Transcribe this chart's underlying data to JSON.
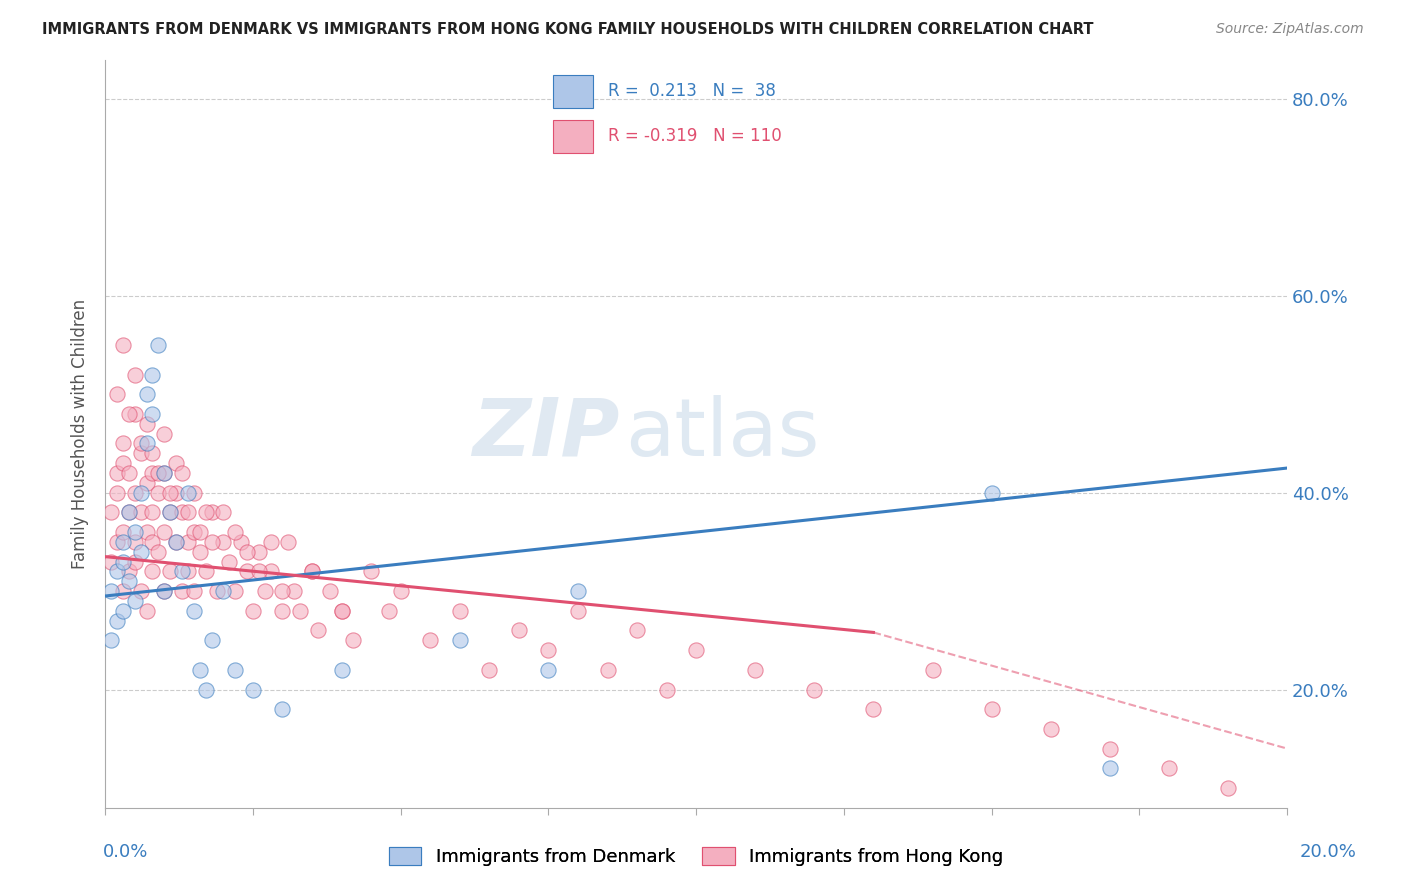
{
  "title": "IMMIGRANTS FROM DENMARK VS IMMIGRANTS FROM HONG KONG FAMILY HOUSEHOLDS WITH CHILDREN CORRELATION CHART",
  "source": "Source: ZipAtlas.com",
  "ylabel": "Family Households with Children",
  "ylabel_tick_vals": [
    0.2,
    0.4,
    0.6,
    0.8
  ],
  "xmin": 0.0,
  "xmax": 0.2,
  "ymin": 0.08,
  "ymax": 0.84,
  "legend_blue_r": "0.213",
  "legend_blue_n": "38",
  "legend_pink_r": "-0.319",
  "legend_pink_n": "110",
  "blue_color": "#aec6e8",
  "pink_color": "#f4afc0",
  "blue_line_color": "#3a7dbf",
  "pink_line_color": "#e05070",
  "watermark_zip": "ZIP",
  "watermark_atlas": "atlas",
  "bg_color": "#ffffff",
  "grid_color": "#cccccc",
  "blue_line_y0": 0.295,
  "blue_line_y1": 0.425,
  "pink_line_y0": 0.335,
  "pink_line_y1_solid": 0.258,
  "pink_solid_xend": 0.13,
  "pink_line_y1_dash": 0.14,
  "blue_scatter_x": [
    0.001,
    0.001,
    0.002,
    0.002,
    0.003,
    0.003,
    0.003,
    0.004,
    0.004,
    0.005,
    0.005,
    0.006,
    0.006,
    0.007,
    0.007,
    0.008,
    0.008,
    0.009,
    0.01,
    0.01,
    0.011,
    0.012,
    0.013,
    0.014,
    0.015,
    0.016,
    0.017,
    0.018,
    0.02,
    0.022,
    0.025,
    0.03,
    0.04,
    0.06,
    0.075,
    0.15,
    0.17,
    0.08
  ],
  "blue_scatter_y": [
    0.3,
    0.25,
    0.32,
    0.27,
    0.35,
    0.28,
    0.33,
    0.31,
    0.38,
    0.29,
    0.36,
    0.4,
    0.34,
    0.45,
    0.5,
    0.48,
    0.52,
    0.55,
    0.42,
    0.3,
    0.38,
    0.35,
    0.32,
    0.4,
    0.28,
    0.22,
    0.2,
    0.25,
    0.3,
    0.22,
    0.2,
    0.18,
    0.22,
    0.25,
    0.22,
    0.4,
    0.12,
    0.3
  ],
  "pink_scatter_x": [
    0.001,
    0.001,
    0.002,
    0.002,
    0.002,
    0.003,
    0.003,
    0.003,
    0.003,
    0.004,
    0.004,
    0.004,
    0.005,
    0.005,
    0.005,
    0.005,
    0.006,
    0.006,
    0.006,
    0.007,
    0.007,
    0.007,
    0.008,
    0.008,
    0.008,
    0.008,
    0.009,
    0.009,
    0.01,
    0.01,
    0.01,
    0.011,
    0.011,
    0.012,
    0.012,
    0.013,
    0.013,
    0.014,
    0.014,
    0.015,
    0.015,
    0.016,
    0.017,
    0.018,
    0.019,
    0.02,
    0.021,
    0.022,
    0.023,
    0.024,
    0.025,
    0.026,
    0.027,
    0.028,
    0.03,
    0.031,
    0.032,
    0.033,
    0.035,
    0.036,
    0.038,
    0.04,
    0.042,
    0.045,
    0.048,
    0.05,
    0.055,
    0.06,
    0.065,
    0.07,
    0.075,
    0.08,
    0.085,
    0.09,
    0.095,
    0.1,
    0.11,
    0.12,
    0.13,
    0.14,
    0.15,
    0.16,
    0.17,
    0.18,
    0.19,
    0.002,
    0.003,
    0.004,
    0.005,
    0.006,
    0.007,
    0.008,
    0.009,
    0.01,
    0.011,
    0.012,
    0.013,
    0.014,
    0.015,
    0.016,
    0.017,
    0.018,
    0.02,
    0.022,
    0.024,
    0.026,
    0.028,
    0.03,
    0.035,
    0.04
  ],
  "pink_scatter_y": [
    0.33,
    0.38,
    0.4,
    0.35,
    0.42,
    0.45,
    0.36,
    0.3,
    0.43,
    0.38,
    0.32,
    0.42,
    0.4,
    0.35,
    0.33,
    0.48,
    0.38,
    0.44,
    0.3,
    0.36,
    0.41,
    0.28,
    0.42,
    0.35,
    0.38,
    0.32,
    0.4,
    0.34,
    0.36,
    0.42,
    0.3,
    0.38,
    0.32,
    0.4,
    0.35,
    0.38,
    0.3,
    0.35,
    0.32,
    0.36,
    0.3,
    0.34,
    0.32,
    0.38,
    0.3,
    0.35,
    0.33,
    0.3,
    0.35,
    0.32,
    0.28,
    0.34,
    0.3,
    0.32,
    0.28,
    0.35,
    0.3,
    0.28,
    0.32,
    0.26,
    0.3,
    0.28,
    0.25,
    0.32,
    0.28,
    0.3,
    0.25,
    0.28,
    0.22,
    0.26,
    0.24,
    0.28,
    0.22,
    0.26,
    0.2,
    0.24,
    0.22,
    0.2,
    0.18,
    0.22,
    0.18,
    0.16,
    0.14,
    0.12,
    0.1,
    0.5,
    0.55,
    0.48,
    0.52,
    0.45,
    0.47,
    0.44,
    0.42,
    0.46,
    0.4,
    0.43,
    0.42,
    0.38,
    0.4,
    0.36,
    0.38,
    0.35,
    0.38,
    0.36,
    0.34,
    0.32,
    0.35,
    0.3,
    0.32,
    0.28
  ]
}
